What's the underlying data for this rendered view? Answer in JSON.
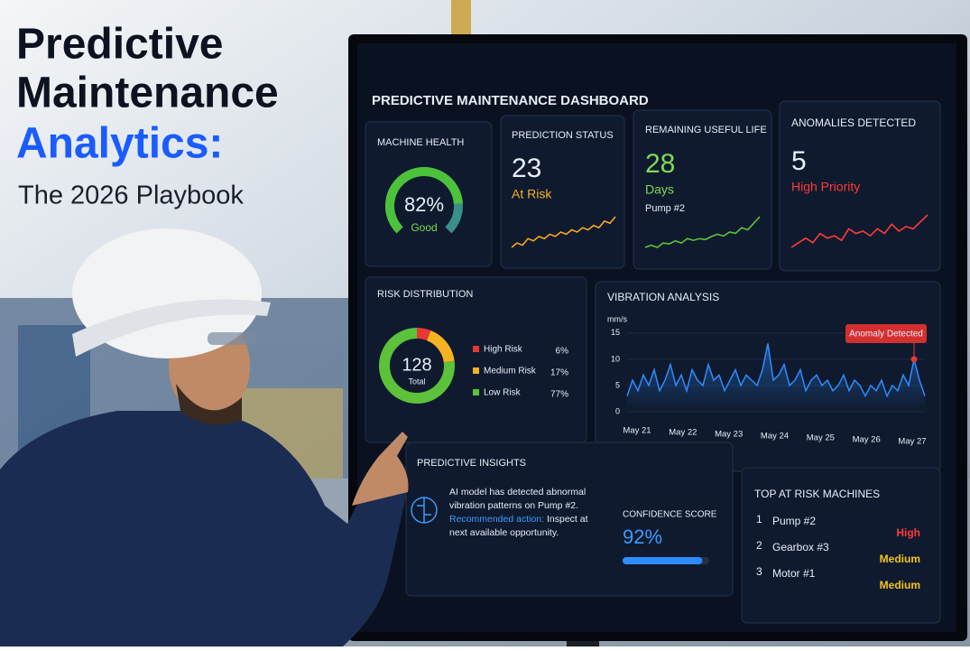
{
  "headline": {
    "line1": "Predictive",
    "line2": "Maintenance",
    "line3": "Analytics:",
    "line4": "The 2026 Playbook"
  },
  "dashboard": {
    "title": "PREDICTIVE MAINTENANCE DASHBOARD",
    "machine_health": {
      "label": "MACHINE HEALTH",
      "value": 82,
      "value_label": "82%",
      "status": "Good"
    },
    "prediction_status": {
      "label": "PREDICTION STATUS",
      "value": 23,
      "status": "At Risk",
      "trend": [
        3,
        4,
        3.5,
        5,
        4.5,
        5.5,
        5,
        6,
        5.5,
        6.5,
        6,
        7,
        6.5,
        7.5,
        7,
        8,
        7.5,
        9,
        8.5,
        10
      ]
    },
    "remaining_useful_life": {
      "label": "REMAINING USEFUL LIFE",
      "value": 28,
      "unit": "Days",
      "machine": "Pump #2",
      "trend": [
        3,
        3.5,
        3,
        4,
        3.8,
        4.5,
        4,
        5,
        4.6,
        5,
        4.8,
        5.5,
        6,
        5.6,
        6.5,
        6.2,
        7.5,
        7,
        8.5,
        10
      ]
    },
    "anomalies": {
      "label": "ANOMALIES DETECTED",
      "value": 5,
      "status": "High Priority",
      "trend": [
        3,
        4,
        5,
        4,
        6,
        5,
        5.5,
        4.5,
        7,
        6,
        6.5,
        5.5,
        7,
        6,
        8,
        6.5,
        7.5,
        7,
        8.5,
        10
      ]
    },
    "risk_distribution": {
      "label": "RISK DISTRIBUTION",
      "total": 128,
      "total_label": "Total",
      "segments": [
        {
          "name": "High Risk",
          "value": 6,
          "value_label": "6%",
          "color": "#e53935"
        },
        {
          "name": "Medium Risk",
          "value": 17,
          "value_label": "17%",
          "color": "#f5b324"
        },
        {
          "name": "Low Risk",
          "value": 77,
          "value_label": "77%",
          "color": "#5cc23a"
        }
      ]
    },
    "vibration": {
      "label": "VIBRATION ANALYSIS",
      "unit": "mm/s",
      "ylim": [
        0,
        16
      ],
      "yticks": [
        0,
        5,
        10,
        15
      ],
      "categories": [
        "May 21",
        "May 22",
        "May 23",
        "May 24",
        "May 25",
        "May 26",
        "May 27"
      ],
      "annotation": "Anomaly Detected",
      "anomaly_index": 53,
      "color": "#2f8cff",
      "values": [
        3,
        6,
        4,
        7,
        5,
        8,
        4,
        6,
        9,
        5,
        7,
        4,
        8,
        6,
        5,
        9,
        6,
        7,
        4,
        6,
        8,
        5,
        7,
        6,
        5,
        8,
        13,
        6,
        7,
        9,
        5,
        6,
        8,
        4,
        6,
        7,
        5,
        6,
        4,
        5,
        7,
        4,
        6,
        5,
        3,
        5,
        4,
        6,
        3,
        5,
        4,
        7,
        5,
        10,
        6,
        3
      ]
    },
    "insights": {
      "label": "PREDICTIVE INSIGHTS",
      "message": "AI model has detected abnormal vibration patterns on Pump #2.",
      "action_label": "Recommended action:",
      "action": "Inspect at next available opportunity.",
      "confidence_label": "CONFIDENCE SCORE",
      "confidence": 92,
      "confidence_label_value": "92%"
    },
    "top_risk": {
      "label": "TOP AT RISK MACHINES",
      "items": [
        {
          "rank": 1,
          "name": "Pump #2",
          "level": "High"
        },
        {
          "rank": 2,
          "name": "Gearbox #3",
          "level": "Medium"
        },
        {
          "rank": 3,
          "name": "Motor #1",
          "level": "Medium"
        }
      ]
    }
  }
}
